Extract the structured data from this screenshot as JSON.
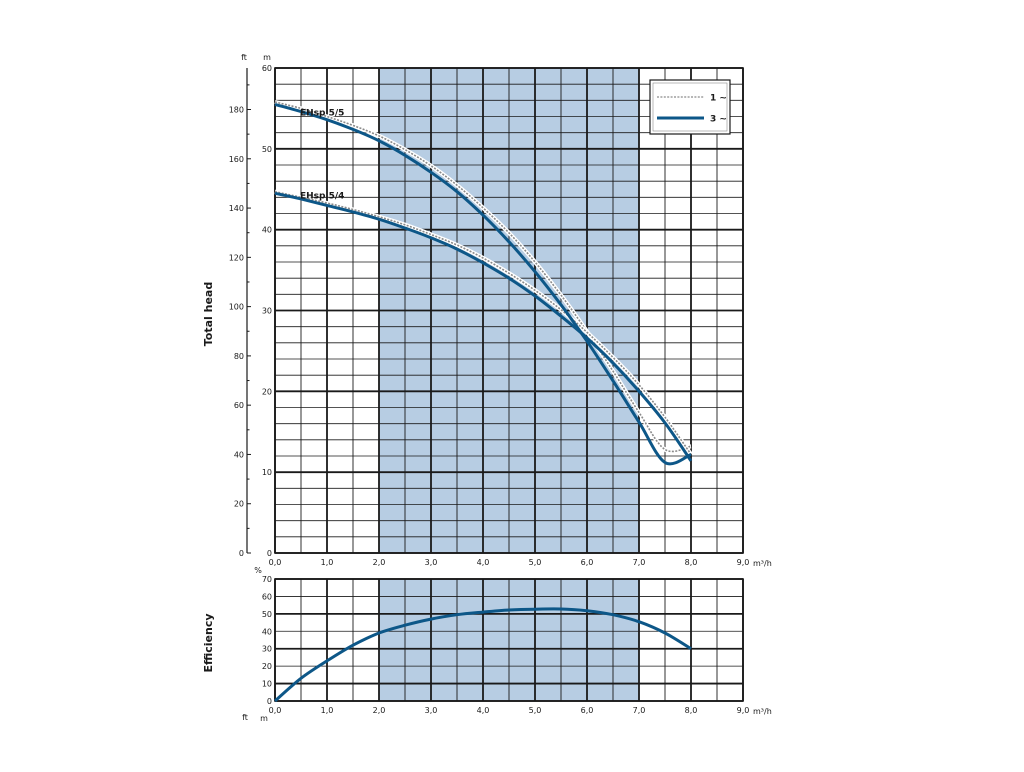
{
  "chart_data": [
    {
      "type": "line",
      "title": "",
      "ylabel": "Total head",
      "xunit": "m³/h",
      "yunit_left": "ft",
      "yunit_right": "m",
      "xlim": [
        0,
        9
      ],
      "ylim_m": [
        0,
        60
      ],
      "ylim_ft": [
        0,
        196.85
      ],
      "xticks": [
        "0,0",
        "1,0",
        "2,0",
        "3,0",
        "4,0",
        "5,0",
        "6,0",
        "7,0",
        "8,0",
        "9,0"
      ],
      "yticks_m": [
        "0",
        "10",
        "20",
        "30",
        "40",
        "50",
        "60"
      ],
      "yticks_ft": [
        "0",
        "20",
        "40",
        "60",
        "80",
        "100",
        "120",
        "140",
        "160",
        "180"
      ],
      "highlight_range_x": [
        2.0,
        7.0
      ],
      "highlight_color": "#b7cde3",
      "grid": true,
      "legend_position": "top-right",
      "legend": [
        {
          "label": "1 ~",
          "style": "dashed",
          "color": "#8a8a8a"
        },
        {
          "label": "3 ~",
          "style": "solid",
          "color": "#0d5788"
        }
      ],
      "curve_labels": [
        {
          "text": "EHsp 5/5",
          "x": 0.5,
          "y": 54.5
        },
        {
          "text": "EHsp 5/4",
          "x": 0.5,
          "y": 44.2
        }
      ],
      "series": [
        {
          "name": "EHsp 5/5 3~",
          "style": "solid",
          "color": "#0d5788",
          "x": [
            0,
            0.5,
            1,
            1.5,
            2,
            2.5,
            3,
            3.5,
            4,
            4.5,
            5,
            5.5,
            6,
            6.5,
            7,
            7.5,
            8
          ],
          "y": [
            55.5,
            54.6,
            53.6,
            52.4,
            51,
            49.2,
            47.1,
            44.7,
            41.8,
            38.5,
            34.8,
            30.7,
            26.2,
            21.3,
            16.2,
            11.2,
            12.2
          ]
        },
        {
          "name": "EHsp 5/5 1~",
          "style": "dashed",
          "color": "#8a8a8a",
          "x": [
            0,
            0.5,
            1,
            1.5,
            2,
            2.5,
            3,
            3.5,
            4,
            4.5,
            5,
            5.5,
            6,
            6.5,
            7,
            7.5,
            8
          ],
          "y": [
            55.8,
            55,
            54,
            52.9,
            51.6,
            49.9,
            47.9,
            45.5,
            42.7,
            39.6,
            36,
            31.9,
            27.4,
            22.5,
            17.4,
            12.8,
            13.2
          ]
        },
        {
          "name": "EHsp 5/4 3~",
          "style": "solid",
          "color": "#0d5788",
          "x": [
            0,
            0.5,
            1,
            1.5,
            2,
            2.5,
            3,
            3.5,
            4,
            4.5,
            5,
            5.5,
            6,
            6.5,
            7,
            7.5,
            8
          ],
          "y": [
            44.5,
            43.8,
            43,
            42.2,
            41.3,
            40.2,
            39,
            37.6,
            35.9,
            34,
            31.8,
            29.3,
            26.6,
            23.5,
            20,
            16.1,
            11.4
          ]
        },
        {
          "name": "EHsp 5/4 1~",
          "style": "dashed",
          "color": "#8a8a8a",
          "x": [
            0,
            0.5,
            1,
            1.5,
            2,
            2.5,
            3,
            3.5,
            4,
            4.5,
            5,
            5.5,
            6,
            6.5,
            7,
            7.5,
            8
          ],
          "y": [
            44.7,
            44,
            43.3,
            42.5,
            41.6,
            40.6,
            39.4,
            38.1,
            36.5,
            34.6,
            32.5,
            30.1,
            27.3,
            24.2,
            20.8,
            16.8,
            12.2
          ]
        }
      ]
    },
    {
      "type": "line",
      "title": "",
      "ylabel": "Efficiency",
      "xunit": "m³/h",
      "yunit": "%",
      "bottom_units": [
        "ft",
        "m"
      ],
      "xlim": [
        0,
        9
      ],
      "ylim": [
        0,
        70
      ],
      "xticks": [
        "0,0",
        "1,0",
        "2,0",
        "3,0",
        "4,0",
        "5,0",
        "6,0",
        "7,0",
        "8,0",
        "9,0"
      ],
      "yticks": [
        "0",
        "10",
        "20",
        "30",
        "40",
        "50",
        "60",
        "70"
      ],
      "highlight_range_x": [
        2.0,
        7.0
      ],
      "highlight_color": "#b7cde3",
      "grid": true,
      "series": [
        {
          "name": "Efficiency",
          "style": "solid",
          "color": "#0d5788",
          "x": [
            0,
            0.5,
            1,
            1.5,
            2,
            2.5,
            3,
            3.5,
            4,
            4.5,
            5,
            5.5,
            6,
            6.5,
            7,
            7.5,
            8
          ],
          "y": [
            0,
            13,
            23,
            32,
            39,
            43.5,
            47,
            49.5,
            51,
            52.2,
            52.7,
            52.8,
            51.8,
            49.5,
            45.5,
            39,
            30
          ]
        }
      ]
    }
  ]
}
